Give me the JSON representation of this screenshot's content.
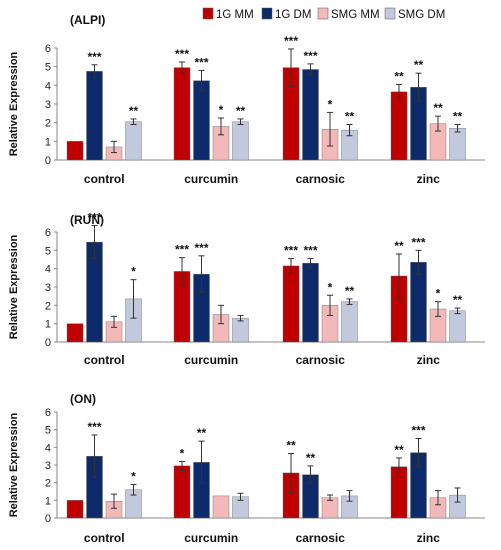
{
  "legend": {
    "placement": "top-right",
    "entries": [
      {
        "name": "1G MM",
        "color": "#c00000"
      },
      {
        "name": "1G DM",
        "color": "#0d2a6b"
      },
      {
        "name": "SMG MM",
        "color": "#f3b8b8"
      },
      {
        "name": "SMG DM",
        "color": "#c3c9dc"
      }
    ]
  },
  "chart_data": [
    {
      "type": "bar",
      "title": "(ALPI)",
      "ylabel": "Relative Expression",
      "ylim": [
        0,
        6
      ],
      "yticks": [
        "0",
        "1",
        "2",
        "3",
        "4",
        "5",
        "6"
      ],
      "categories": [
        "control",
        "curcumin",
        "carnosic",
        "zinc"
      ],
      "series": [
        {
          "name": "1G MM",
          "values": [
            1.0,
            4.95,
            4.95,
            3.65
          ],
          "errors": [
            0,
            0.3,
            1.0,
            0.4
          ],
          "sig": [
            "",
            "***",
            "***",
            "**"
          ]
        },
        {
          "name": "1G DM",
          "values": [
            4.75,
            4.25,
            4.85,
            3.9
          ],
          "errors": [
            0.35,
            0.55,
            0.3,
            0.75
          ],
          "sig": [
            "***",
            "***",
            "***",
            "**"
          ]
        },
        {
          "name": "SMG MM",
          "values": [
            0.7,
            1.8,
            1.65,
            1.95
          ],
          "errors": [
            0.3,
            0.45,
            0.9,
            0.4
          ],
          "sig": [
            "",
            "*",
            "*",
            "**"
          ]
        },
        {
          "name": "SMG DM",
          "values": [
            2.05,
            2.05,
            1.6,
            1.7
          ],
          "errors": [
            0.15,
            0.15,
            0.3,
            0.2
          ],
          "sig": [
            "**",
            "**",
            "**",
            "**"
          ]
        }
      ]
    },
    {
      "type": "bar",
      "title": "(RUN)",
      "ylabel": "Relative Expression",
      "ylim": [
        0,
        6
      ],
      "yticks": [
        "0",
        "1",
        "2",
        "3",
        "4",
        "5",
        "6"
      ],
      "categories": [
        "control",
        "curcumin",
        "carnosic",
        "zinc"
      ],
      "series": [
        {
          "name": "1G MM",
          "values": [
            1.0,
            3.85,
            4.15,
            3.6
          ],
          "errors": [
            0,
            0.75,
            0.4,
            1.2
          ],
          "sig": [
            "",
            "***",
            "***",
            "**"
          ]
        },
        {
          "name": "1G DM",
          "values": [
            5.45,
            3.7,
            4.3,
            4.35
          ],
          "errors": [
            0.9,
            1.0,
            0.25,
            0.65
          ],
          "sig": [
            "***",
            "***",
            "***",
            "***"
          ]
        },
        {
          "name": "SMG MM",
          "values": [
            1.1,
            1.5,
            2.0,
            1.8
          ],
          "errors": [
            0.3,
            0.5,
            0.55,
            0.4
          ],
          "sig": [
            "",
            "",
            "*",
            "*"
          ]
        },
        {
          "name": "SMG DM",
          "values": [
            2.35,
            1.3,
            2.2,
            1.7
          ],
          "errors": [
            1.05,
            0.15,
            0.15,
            0.15
          ],
          "sig": [
            "*",
            "",
            "**",
            "**"
          ]
        }
      ]
    },
    {
      "type": "bar",
      "title": "(ON)",
      "ylabel": "Relative Expression",
      "ylim": [
        0,
        6
      ],
      "yticks": [
        "0",
        "1",
        "2",
        "3",
        "4",
        "5",
        "6"
      ],
      "categories": [
        "control",
        "curcumin",
        "carnosic",
        "zinc"
      ],
      "series": [
        {
          "name": "1G MM",
          "values": [
            1.0,
            2.95,
            2.55,
            2.9
          ],
          "errors": [
            0,
            0.25,
            1.1,
            0.5
          ],
          "sig": [
            "",
            "*",
            "**",
            "**"
          ]
        },
        {
          "name": "1G DM",
          "values": [
            3.5,
            3.15,
            2.45,
            3.7
          ],
          "errors": [
            1.2,
            1.2,
            0.5,
            0.8
          ],
          "sig": [
            "***",
            "**",
            "**",
            "***"
          ]
        },
        {
          "name": "SMG MM",
          "values": [
            0.95,
            1.25,
            1.15,
            1.15
          ],
          "errors": [
            0.4,
            0,
            0.15,
            0.4
          ],
          "sig": [
            "",
            "",
            "",
            ""
          ]
        },
        {
          "name": "SMG DM",
          "values": [
            1.6,
            1.2,
            1.25,
            1.3
          ],
          "errors": [
            0.3,
            0.2,
            0.3,
            0.4
          ],
          "sig": [
            "*",
            "",
            "",
            ""
          ]
        }
      ]
    }
  ]
}
